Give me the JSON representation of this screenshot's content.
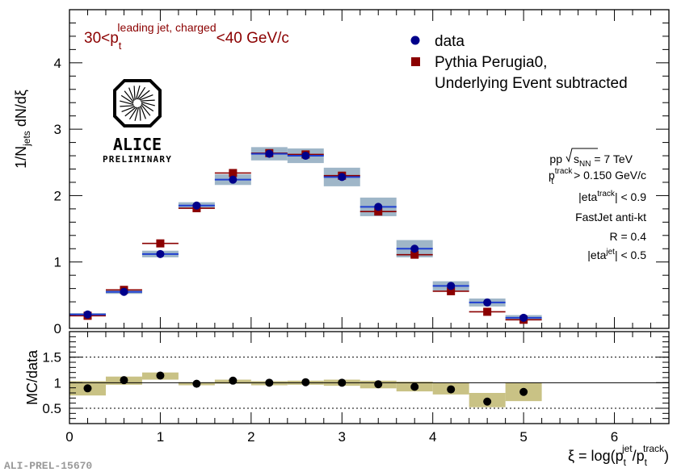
{
  "chart_data": [
    {
      "type": "scatter",
      "panel": "main",
      "title": "30<p_t^{leading jet, charged}<40 GeV/c",
      "title_parts": {
        "pre": "30<p",
        "sub": "t",
        "sup": "leading jet, charged",
        "post": "<40 GeV/c"
      },
      "ylabel": "1/N_jets dN/dξ",
      "ylabel_parts": {
        "pre": "1/N",
        "sub": "jets",
        "post": " dN/dξ"
      },
      "ylim": [
        0,
        4.8
      ],
      "xlim": [
        0,
        6.6
      ],
      "yticks": [
        0,
        1,
        2,
        3,
        4
      ],
      "grid": false,
      "legend_position": "top-right",
      "series": [
        {
          "name": "data",
          "marker": "circle",
          "color": "#00008b",
          "x": [
            0.2,
            0.6,
            1.0,
            1.4,
            1.8,
            2.2,
            2.6,
            3.0,
            3.4,
            3.8,
            4.2,
            4.6,
            5.0
          ],
          "y": [
            0.21,
            0.55,
            1.12,
            1.85,
            2.24,
            2.63,
            2.6,
            2.28,
            1.83,
            1.2,
            0.64,
            0.39,
            0.16
          ],
          "x_halfwidth": 0.2,
          "sys_err": [
            0.02,
            0.03,
            0.05,
            0.05,
            0.08,
            0.1,
            0.11,
            0.14,
            0.14,
            0.13,
            0.07,
            0.06,
            0.04
          ],
          "sys_color": "#9fb6c8"
        },
        {
          "name": "Pythia Perugia0, Underlying Event subtracted",
          "legend_lines": [
            "Pythia Perugia0,",
            "Underlying Event subtracted"
          ],
          "marker": "square",
          "color": "#8b0000",
          "x": [
            0.2,
            0.6,
            1.0,
            1.4,
            1.8,
            2.2,
            2.6,
            3.0,
            3.4,
            3.8,
            4.2,
            4.6,
            5.0
          ],
          "y": [
            0.19,
            0.58,
            1.28,
            1.81,
            2.34,
            2.64,
            2.62,
            2.3,
            1.76,
            1.11,
            0.56,
            0.25,
            0.13
          ],
          "x_halfwidth": 0.2
        }
      ],
      "info_lines": [
        "pp √s_NN = 7 TeV",
        "p_t^track > 0.150 GeV/c",
        "|eta^track| < 0.9",
        "FastJet anti-kt",
        "R = 0.4",
        "|eta^jet| < 0.5"
      ],
      "info_parts": {
        "l1_pre": "pp  ",
        "l1_root": "s",
        "l1_sub": "NN",
        "l1_post": " = 7 TeV",
        "l2_pre": "p",
        "l2_sup": "track",
        "l2_sub": "t",
        "l2_post": " > 0.150 GeV/c",
        "l3_pre": "|eta",
        "l3_sup": "track",
        "l3_post": "| < 0.9",
        "l4": "FastJet anti-kt",
        "l5": "R = 0.4",
        "l6_pre": "|eta",
        "l6_sup": "jet",
        "l6_post": "| < 0.5"
      },
      "logo": {
        "name": "ALICE",
        "status": "PRELIMINARY"
      }
    },
    {
      "type": "scatter",
      "panel": "ratio",
      "ylabel": "MC/data",
      "xlabel": "ξ = log(p_t^jet/p_t^track)",
      "xlabel_parts": {
        "pre": "ξ = log(p",
        "sub1": "t",
        "sup1": "jet",
        "mid": "/p",
        "sub2": "t",
        "sup2": "track",
        "post": ")"
      },
      "ylim": [
        0.2,
        2.0
      ],
      "xlim": [
        0,
        6.6
      ],
      "yticks": [
        0.5,
        1,
        1.5
      ],
      "ytick_labels": [
        "0.5",
        "1",
        "1.5"
      ],
      "xticks": [
        0,
        1,
        2,
        3,
        4,
        5,
        6
      ],
      "xtick_labels": [
        "0",
        "1",
        "2",
        "3",
        "4",
        "5",
        "6"
      ],
      "reference_lines": [
        0.5,
        1.0,
        1.5
      ],
      "series": [
        {
          "name": "MC/data",
          "marker": "circle",
          "color": "#000000",
          "x": [
            0.2,
            0.6,
            1.0,
            1.4,
            1.8,
            2.2,
            2.6,
            3.0,
            3.4,
            3.8,
            4.2,
            4.6,
            5.0
          ],
          "y": [
            0.89,
            1.05,
            1.14,
            0.98,
            1.04,
            1.0,
            1.01,
            1.0,
            0.97,
            0.92,
            0.87,
            0.63,
            0.82
          ],
          "band_low": [
            0.75,
            0.96,
            1.06,
            0.95,
            0.98,
            0.95,
            0.96,
            0.94,
            0.89,
            0.83,
            0.77,
            0.52,
            0.64
          ],
          "band_high": [
            1.03,
            1.12,
            1.2,
            1.01,
            1.06,
            1.03,
            1.04,
            1.06,
            1.04,
            1.02,
            1.0,
            0.8,
            1.0
          ],
          "band_color": "#c9c285",
          "x_halfwidth": 0.2
        }
      ]
    }
  ],
  "footer_label": "ALI-PREL-15670"
}
